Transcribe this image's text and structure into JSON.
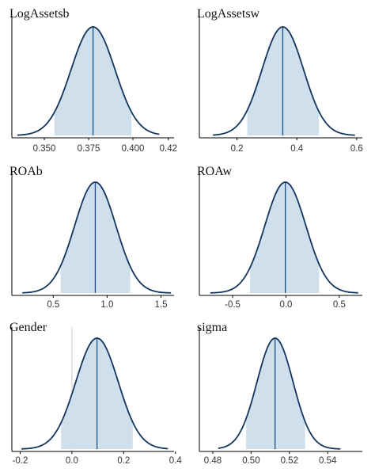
{
  "figure": {
    "colors": {
      "curve": "#15355f",
      "fill": "#cfe0ec",
      "median": "#1d4f86",
      "axis": "#000000",
      "zero_ref": "#cccccc"
    }
  },
  "chart_data": [
    {
      "type": "area",
      "title": "LogAssetsb",
      "xlim": [
        0.3326,
        0.4232
      ],
      "ticks": [
        0.35,
        0.375,
        0.4,
        0.42
      ],
      "tick_labels": [
        "0.350",
        "0.375",
        "0.400",
        "0.42"
      ],
      "center": 0.3775,
      "sd": 0.0124,
      "interval": [
        0.3557,
        0.3991
      ],
      "median": 0.3775,
      "range": [
        0.3348,
        0.4149
      ]
    },
    {
      "type": "area",
      "title": "LogAssetsw",
      "xlim": [
        0.0795,
        0.6189
      ],
      "ticks": [
        0.2,
        0.4,
        0.6
      ],
      "tick_labels": [
        "0.2",
        "0.4",
        "0.6"
      ],
      "center": 0.353,
      "sd": 0.0695,
      "interval": [
        0.2344,
        0.4739
      ],
      "median": 0.353,
      "range": [
        0.1195,
        0.5942
      ]
    },
    {
      "type": "area",
      "title": "ROAb",
      "xlim": [
        0.1303,
        1.6212
      ],
      "ticks": [
        0.5,
        1.0,
        1.5
      ],
      "tick_labels": [
        "0.5",
        "1.0",
        "1.5"
      ],
      "center": 0.89,
      "sd": 0.192,
      "interval": [
        0.568,
        1.214
      ],
      "median": 0.89,
      "range": [
        0.213,
        1.593
      ]
    },
    {
      "type": "area",
      "title": "ROAw",
      "xlim": [
        -0.7971,
        0.7158
      ],
      "ticks": [
        -0.5,
        0.0,
        0.5
      ],
      "tick_labels": [
        "-0.5",
        "0.0",
        "0.5"
      ],
      "center": -0.006,
      "sd": 0.193,
      "interval": [
        -0.337,
        0.311
      ],
      "median": -0.006,
      "range": [
        -0.709,
        0.677
      ]
    },
    {
      "type": "area",
      "title": "Gender",
      "xlim": [
        -0.2259,
        0.3946
      ],
      "ticks": [
        -0.2,
        0.0,
        0.2,
        0.4
      ],
      "tick_labels": [
        "-0.2",
        "0.0",
        "0.2",
        "0.4"
      ],
      "center": 0.097,
      "sd": 0.082,
      "interval": [
        -0.042,
        0.235
      ],
      "median": 0.097,
      "range": [
        -0.195,
        0.371
      ],
      "zero_ref": 0.0
    },
    {
      "type": "area",
      "title": "sigma",
      "xlim": [
        0.4738,
        0.5581
      ],
      "ticks": [
        0.48,
        0.5,
        0.52,
        0.54
      ],
      "tick_labels": [
        "0.48",
        "0.50",
        "0.52",
        "0.54"
      ],
      "center": 0.5125,
      "sd": 0.0094,
      "interval": [
        0.4974,
        0.5282
      ],
      "median": 0.5125,
      "range": [
        0.4828,
        0.5466
      ]
    }
  ]
}
